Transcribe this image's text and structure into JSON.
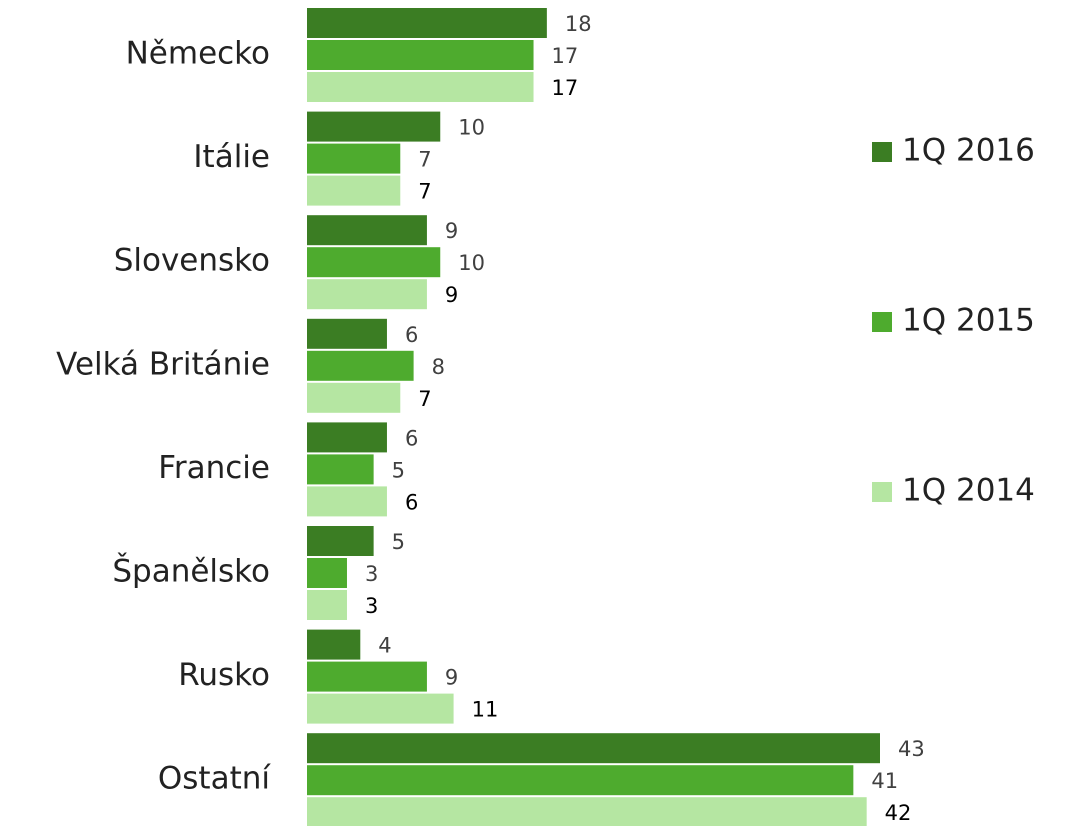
{
  "chart_data": {
    "type": "bar",
    "orientation": "horizontal",
    "categories": [
      "Německo",
      "Itálie",
      "Slovensko",
      "Velká Británie",
      "Francie",
      "Španělsko",
      "Rusko",
      "Ostatní"
    ],
    "series": [
      {
        "name": "1Q 2016",
        "color": "#3b7d23",
        "values": [
          18,
          10,
          9,
          6,
          6,
          5,
          4,
          43
        ]
      },
      {
        "name": "1Q 2015",
        "color": "#4eab2e",
        "values": [
          17,
          7,
          10,
          8,
          5,
          3,
          9,
          41
        ]
      },
      {
        "name": "1Q 2014",
        "color": "#b5e6a2",
        "values": [
          17,
          7,
          9,
          7,
          6,
          3,
          11,
          42
        ]
      }
    ],
    "legend": "right"
  }
}
